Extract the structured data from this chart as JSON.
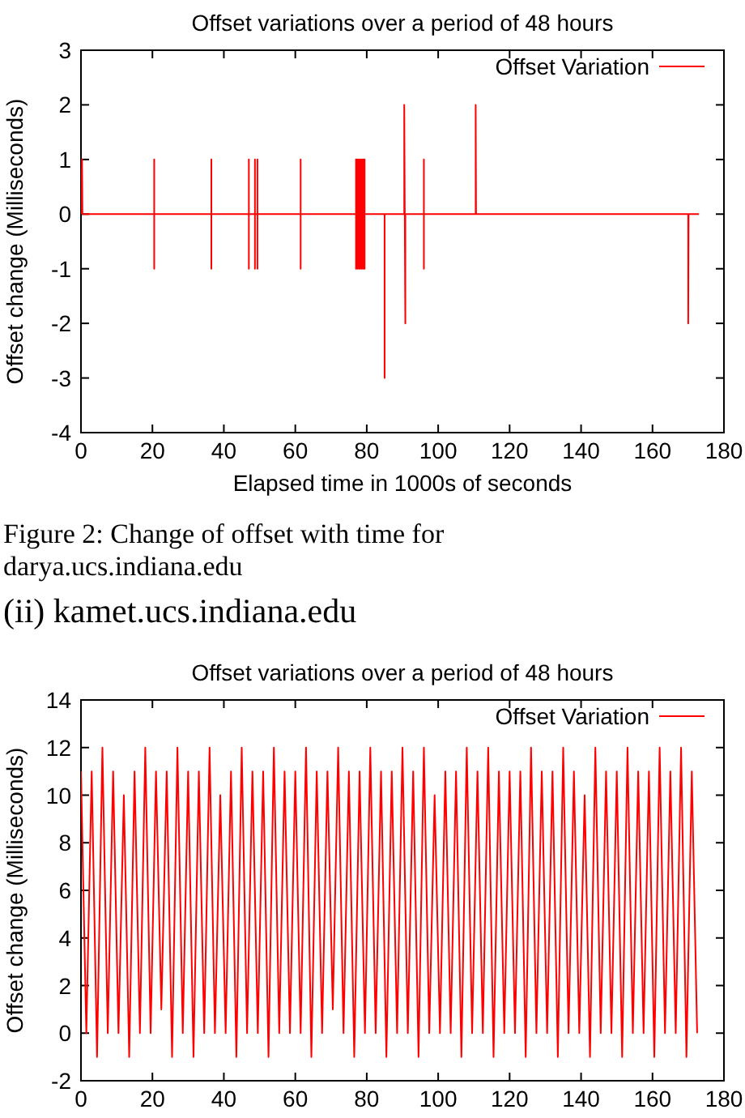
{
  "chart_data": [
    {
      "type": "line",
      "title": "Offset variations over a period of 48 hours",
      "xlabel": "Elapsed time in 1000s of seconds",
      "ylabel": "Offset change (Milliseconds)",
      "xlim": [
        0,
        180
      ],
      "xticks": [
        0,
        20,
        40,
        60,
        80,
        100,
        120,
        140,
        160,
        180
      ],
      "ylim": [
        -4,
        3
      ],
      "yticks": [
        -4,
        -3,
        -2,
        -1,
        0,
        1,
        2,
        3
      ],
      "grid": false,
      "legend": "top right",
      "marker": "none",
      "line_style": "solid",
      "annotations": [
        "Figure 2: Change of offset with time for darya.ucs.indiana.edu"
      ],
      "series": [
        {
          "name": "Offset Variation",
          "color": "#ff0000",
          "x": [
            0,
            0.3,
            0.4,
            20.5,
            20.5,
            20.5,
            20.5,
            36.5,
            36.5,
            36.5,
            36.5,
            47,
            47,
            47,
            47,
            48.7,
            48.7,
            48.7,
            48.7,
            49.4,
            49.4,
            49.4,
            49.4,
            61.5,
            61.5,
            61.5,
            61.5,
            77,
            77,
            77,
            77.4,
            77.4,
            77.8,
            77.8,
            78.2,
            78.2,
            78.6,
            78.6,
            79,
            79,
            79.4,
            79.4,
            79.4,
            85,
            85,
            85,
            90.5,
            90.5,
            90.8,
            90.8,
            96,
            96,
            96,
            96,
            110.5,
            110.5,
            110.6,
            170,
            170,
            170.1,
            173
          ],
          "values": [
            0,
            1,
            0,
            0,
            1,
            -1,
            0,
            0,
            1,
            -1,
            0,
            0,
            1,
            -1,
            0,
            0,
            1,
            -1,
            0,
            0,
            1,
            -1,
            0,
            0,
            1,
            -1,
            0,
            0,
            1,
            -1,
            1,
            -1,
            1,
            -1,
            1,
            -1,
            1,
            -1,
            1,
            -1,
            1,
            -1,
            0,
            0,
            -3,
            0,
            0,
            2,
            -2,
            0,
            0,
            1,
            -1,
            0,
            0,
            2,
            0,
            0,
            -2,
            0,
            0
          ]
        }
      ]
    },
    {
      "type": "line",
      "title": "Offset variations over a period of 48 hours",
      "ylabel": "Offset change (Milliseconds)",
      "xlim": [
        0,
        180
      ],
      "xticks": [
        0,
        20,
        40,
        60,
        80,
        100,
        120,
        140,
        160,
        180
      ],
      "ylim": [
        -2,
        14
      ],
      "yticks": [
        -2,
        0,
        2,
        4,
        6,
        8,
        10,
        12,
        14
      ],
      "grid": false,
      "legend": "top right",
      "marker": "none",
      "line_style": "solid",
      "annotations": [
        "(ii) kamet.ucs.indiana.edu"
      ],
      "series": [
        {
          "name": "Offset Variation",
          "color": "#ff0000",
          "x": [
            0,
            1.5,
            3,
            4.5,
            6,
            7.5,
            9,
            10.5,
            12,
            13.5,
            15,
            16.5,
            18,
            19.5,
            21,
            22.5,
            24,
            25.5,
            27,
            28.5,
            30,
            31.5,
            33,
            34.5,
            36,
            37.5,
            39,
            40.5,
            42,
            43.5,
            45,
            46.5,
            48,
            49.5,
            51,
            52.5,
            54,
            55.5,
            57,
            58.5,
            60,
            61.5,
            63,
            64.5,
            66,
            67.5,
            69,
            70.5,
            72,
            73.5,
            75,
            76.5,
            78,
            79.5,
            81,
            82.5,
            84,
            85.5,
            87,
            88.5,
            90,
            91.5,
            93,
            94.5,
            96,
            97.5,
            99,
            100.5,
            102,
            103.5,
            105,
            106.5,
            108,
            109.5,
            111,
            112.5,
            114,
            115.5,
            117,
            118.5,
            120,
            121.5,
            123,
            124.5,
            126,
            127.5,
            129,
            130.5,
            132,
            133.5,
            135,
            136.5,
            138,
            139.5,
            141,
            142.5,
            144,
            145.5,
            147,
            148.5,
            150,
            151.5,
            153,
            154.5,
            156,
            157.5,
            159,
            160.5,
            162,
            163.5,
            165,
            166.5,
            168,
            169.5,
            171,
            172.5
          ],
          "values": [
            11,
            0,
            11,
            -1,
            12,
            0,
            11,
            0,
            10,
            -1,
            11,
            0,
            12,
            0,
            11,
            1,
            11,
            -1,
            12,
            0,
            11,
            -1,
            11,
            0,
            12,
            0,
            10,
            0,
            11,
            -1,
            12,
            0,
            11,
            0,
            11,
            -1,
            12,
            0,
            11,
            0,
            11,
            0,
            12,
            -1,
            11,
            0,
            11,
            1,
            12,
            0,
            11,
            -1,
            11,
            0,
            12,
            0,
            11,
            -1,
            11,
            0,
            12,
            0,
            11,
            -1,
            12,
            0,
            10,
            0,
            11,
            0,
            11,
            -1,
            12,
            0,
            11,
            0,
            12,
            -1,
            11,
            0,
            11,
            0,
            11,
            -1,
            12,
            0,
            11,
            0,
            11,
            -1,
            12,
            0,
            11,
            0,
            10,
            -1,
            12,
            0,
            11,
            0,
            11,
            -1,
            12,
            0,
            11,
            0,
            11,
            -1,
            12,
            0,
            11,
            0,
            12,
            -1,
            11,
            0
          ]
        }
      ]
    }
  ]
}
